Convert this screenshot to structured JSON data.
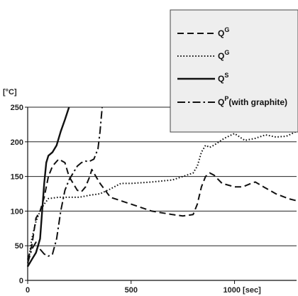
{
  "chart_data": {
    "type": "line",
    "ylabel": "[°C]",
    "xlabel": "[sec]",
    "xlim": [
      0,
      1300
    ],
    "ylim": [
      0,
      250
    ],
    "grid": "horizontal",
    "legend_position": "top-right",
    "x_ticks": [
      "0",
      "500",
      "1000 [sec]"
    ],
    "x_tick_values": [
      0,
      500,
      1000
    ],
    "y_ticks": [
      "0",
      "50",
      "100",
      "150",
      "200",
      "250"
    ],
    "y_tick_values": [
      0,
      50,
      100,
      150,
      200,
      250
    ],
    "colors": {
      "lines": "#111111",
      "grid": "#222222",
      "legend_bg": "#eeeeee"
    },
    "series": [
      {
        "name": "Q",
        "sup": "G",
        "style": "dashed",
        "points": [
          [
            0,
            30
          ],
          [
            20,
            50
          ],
          [
            40,
            90
          ],
          [
            60,
            100
          ],
          [
            80,
            120
          ],
          [
            100,
            150
          ],
          [
            120,
            165
          ],
          [
            150,
            175
          ],
          [
            180,
            170
          ],
          [
            200,
            150
          ],
          [
            220,
            140
          ],
          [
            240,
            130
          ],
          [
            260,
            128
          ],
          [
            280,
            135
          ],
          [
            300,
            150
          ],
          [
            310,
            160
          ],
          [
            330,
            150
          ],
          [
            350,
            140
          ],
          [
            400,
            120
          ],
          [
            500,
            110
          ],
          [
            600,
            100
          ],
          [
            700,
            95
          ],
          [
            750,
            93
          ],
          [
            800,
            95
          ],
          [
            820,
            110
          ],
          [
            840,
            135
          ],
          [
            860,
            150
          ],
          [
            880,
            155
          ],
          [
            900,
            152
          ],
          [
            940,
            140
          ],
          [
            1000,
            135
          ],
          [
            1040,
            135
          ],
          [
            1080,
            140
          ],
          [
            1100,
            142
          ],
          [
            1140,
            135
          ],
          [
            1200,
            125
          ],
          [
            1260,
            118
          ],
          [
            1300,
            115
          ]
        ]
      },
      {
        "name": "Q",
        "sup": "G",
        "style": "dotted",
        "points": [
          [
            0,
            20
          ],
          [
            20,
            60
          ],
          [
            40,
            85
          ],
          [
            60,
            100
          ],
          [
            80,
            110
          ],
          [
            100,
            118
          ],
          [
            150,
            120
          ],
          [
            200,
            120
          ],
          [
            250,
            120
          ],
          [
            300,
            123
          ],
          [
            350,
            125
          ],
          [
            400,
            132
          ],
          [
            450,
            140
          ],
          [
            500,
            140
          ],
          [
            600,
            142
          ],
          [
            700,
            145
          ],
          [
            750,
            150
          ],
          [
            800,
            155
          ],
          [
            820,
            165
          ],
          [
            840,
            185
          ],
          [
            860,
            195
          ],
          [
            880,
            192
          ],
          [
            900,
            195
          ],
          [
            950,
            205
          ],
          [
            1000,
            212
          ],
          [
            1050,
            202
          ],
          [
            1100,
            205
          ],
          [
            1150,
            210
          ],
          [
            1200,
            207
          ],
          [
            1250,
            208
          ],
          [
            1300,
            215
          ]
        ]
      },
      {
        "name": "Q",
        "sup": "S",
        "style": "solid",
        "points": [
          [
            0,
            20
          ],
          [
            20,
            30
          ],
          [
            40,
            40
          ],
          [
            60,
            60
          ],
          [
            70,
            100
          ],
          [
            80,
            140
          ],
          [
            90,
            170
          ],
          [
            100,
            180
          ],
          [
            120,
            185
          ],
          [
            140,
            195
          ],
          [
            160,
            215
          ],
          [
            180,
            232
          ],
          [
            200,
            250
          ]
        ]
      },
      {
        "name": "Q",
        "sup": "P",
        "note": "(with graphite)",
        "style": "dashdot",
        "points": [
          [
            0,
            25
          ],
          [
            20,
            45
          ],
          [
            40,
            55
          ],
          [
            60,
            45
          ],
          [
            80,
            38
          ],
          [
            100,
            35
          ],
          [
            120,
            38
          ],
          [
            140,
            60
          ],
          [
            160,
            100
          ],
          [
            180,
            130
          ],
          [
            200,
            145
          ],
          [
            220,
            155
          ],
          [
            240,
            165
          ],
          [
            260,
            170
          ],
          [
            280,
            172
          ],
          [
            300,
            172
          ],
          [
            320,
            175
          ],
          [
            340,
            190
          ],
          [
            350,
            215
          ],
          [
            360,
            250
          ]
        ]
      }
    ]
  }
}
